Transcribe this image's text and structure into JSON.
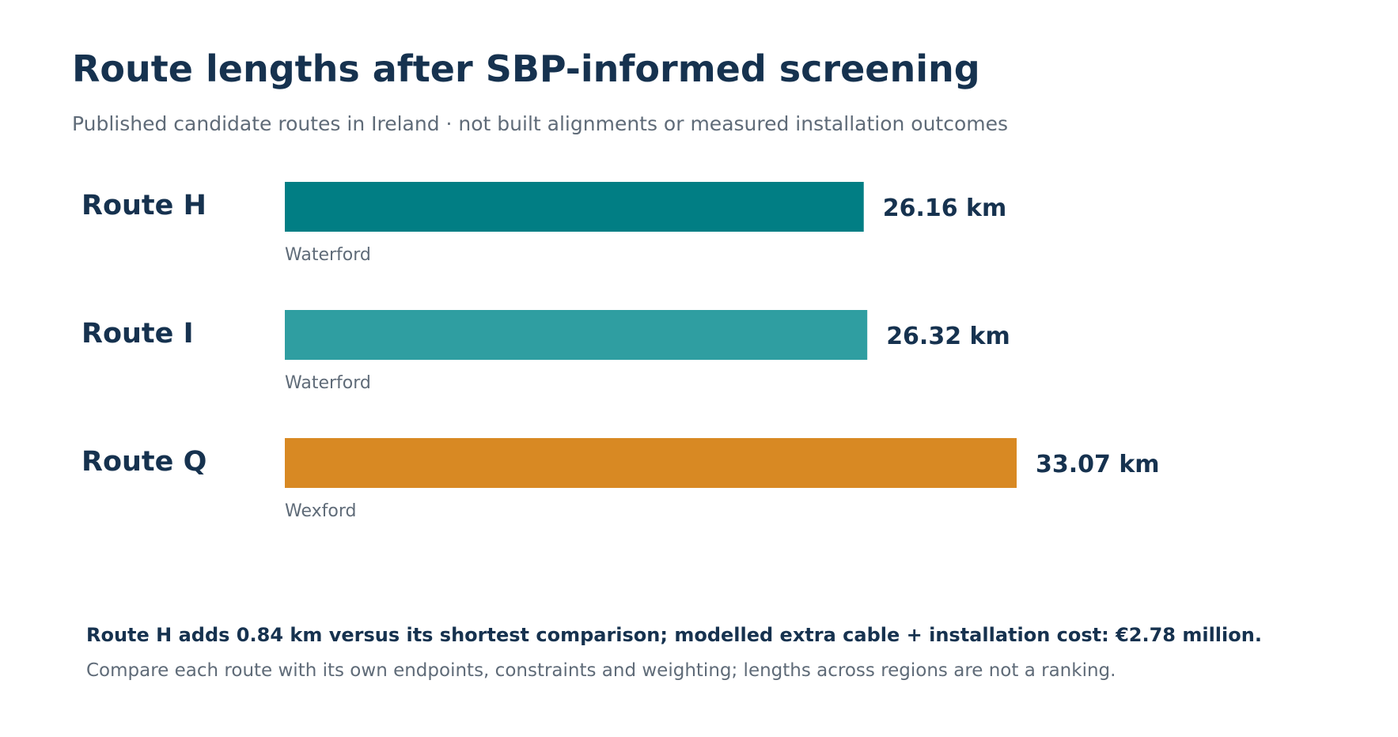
{
  "header": {
    "title": "Route lengths after SBP-informed screening",
    "subtitle": "Published candidate routes in Ireland · not built alignments or measured installation outcomes"
  },
  "chart_data": {
    "type": "bar",
    "orientation": "horizontal",
    "categories": [
      "Route H",
      "Route I",
      "Route Q"
    ],
    "values": [
      26.16,
      26.32,
      33.07
    ],
    "value_labels": [
      "26.16 km",
      "26.32 km",
      "33.07 km"
    ],
    "regions": [
      "Waterford",
      "Waterford",
      "Wexford"
    ],
    "colors": [
      "#017e84",
      "#2f9ea1",
      "#d88923"
    ],
    "unit": "km",
    "xlim": [
      0,
      33.07
    ],
    "grid": false,
    "legend": "none"
  },
  "footer": {
    "main": "Route H adds 0.84 km versus its shortest comparison; modelled extra cable + installation cost: €2.78 million.",
    "note": "Compare each route with its own endpoints, constraints and weighting; lengths across regions are not a ranking."
  },
  "colors": {
    "title": "#16324f",
    "muted": "#5f6b78"
  }
}
